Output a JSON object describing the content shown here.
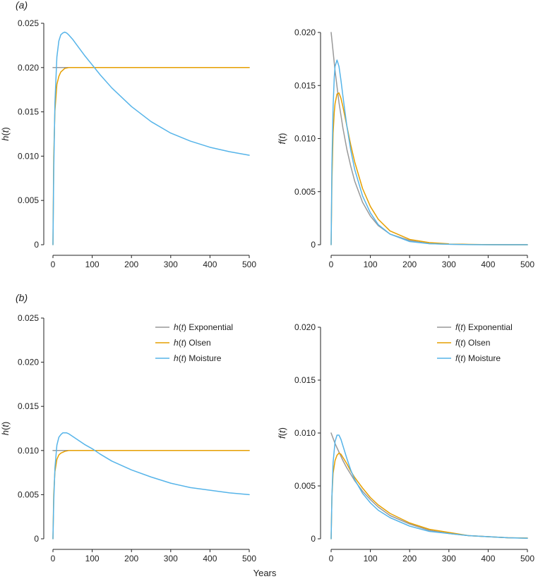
{
  "figure": {
    "xlabel": "Years",
    "panel_a_label": "(a)",
    "panel_b_label": "(b)"
  },
  "colors": {
    "Exponential": "#999999",
    "Olsen": "#E69F00",
    "Moisture": "#56B4E9"
  },
  "chart_data": [
    {
      "id": "a-h",
      "type": "line",
      "panel": "(a)",
      "xlabel": "",
      "ylabel": "h(t)",
      "xlim": [
        0,
        500
      ],
      "ylim": [
        0,
        0.025
      ],
      "xticks": [
        0,
        100,
        200,
        300,
        400,
        500
      ],
      "yticks": [
        0,
        0.005,
        0.01,
        0.015,
        0.02,
        0.025
      ],
      "ytick_labels": [
        "0",
        "0.005",
        "0.010",
        "0.015",
        "0.020",
        "0.025"
      ],
      "legend": false,
      "series": [
        {
          "key": "Exponential",
          "x": [
            0,
            500
          ],
          "y": [
            0.02,
            0.02
          ]
        },
        {
          "key": "Olsen",
          "x": [
            0,
            2,
            5,
            10,
            15,
            20,
            30,
            40,
            50,
            60,
            80,
            100,
            500
          ],
          "y": [
            0,
            0.0099,
            0.0151,
            0.0181,
            0.019,
            0.0195,
            0.0199,
            0.02,
            0.02,
            0.02,
            0.02,
            0.02,
            0.02
          ]
        },
        {
          "key": "Moisture",
          "x": [
            0,
            2,
            5,
            10,
            15,
            20,
            25,
            30,
            35,
            40,
            50,
            60,
            80,
            100,
            120,
            150,
            200,
            250,
            300,
            350,
            400,
            450,
            500
          ],
          "y": [
            0,
            0.0083,
            0.016,
            0.0212,
            0.023,
            0.0237,
            0.0239,
            0.024,
            0.0239,
            0.0237,
            0.0232,
            0.0226,
            0.0214,
            0.0203,
            0.0192,
            0.0177,
            0.0156,
            0.0139,
            0.0126,
            0.0117,
            0.011,
            0.0105,
            0.0101
          ]
        }
      ]
    },
    {
      "id": "a-f",
      "type": "line",
      "panel": "(a)",
      "xlabel": "",
      "ylabel": "f(t)",
      "xlim": [
        0,
        500
      ],
      "ylim": [
        0,
        0.02
      ],
      "xticks": [
        0,
        100,
        200,
        300,
        400,
        500
      ],
      "yticks": [
        0,
        0.005,
        0.01,
        0.015,
        0.02
      ],
      "ytick_labels": [
        "0",
        "0.005",
        "0.010",
        "0.015",
        "0.020"
      ],
      "legend": false,
      "series": [
        {
          "key": "Exponential",
          "x": [
            0,
            10,
            20,
            30,
            40,
            50,
            60,
            80,
            100,
            120,
            150,
            200,
            250,
            300,
            350,
            400,
            450,
            500
          ],
          "y": [
            0.02,
            0.0164,
            0.0134,
            0.011,
            0.009,
            0.0074,
            0.006,
            0.004,
            0.0027,
            0.0018,
            0.001,
            0.0004,
            0.0001,
            5e-05,
            2e-05,
            1e-05,
            0.0,
            0.0
          ]
        },
        {
          "key": "Olsen",
          "x": [
            0,
            2,
            5,
            8,
            10,
            15,
            20,
            25,
            30,
            40,
            50,
            60,
            80,
            100,
            120,
            150,
            200,
            250,
            300,
            350,
            400,
            450,
            500
          ],
          "y": [
            0,
            0.006,
            0.0105,
            0.0125,
            0.0133,
            0.0142,
            0.0143,
            0.0138,
            0.013,
            0.0112,
            0.0094,
            0.0078,
            0.0053,
            0.0036,
            0.0024,
            0.0013,
            0.0005,
            0.0002,
            8e-05,
            3e-05,
            1e-05,
            0.0,
            0.0
          ]
        },
        {
          "key": "Moisture",
          "x": [
            0,
            2,
            5,
            8,
            10,
            15,
            20,
            25,
            30,
            40,
            50,
            60,
            80,
            100,
            120,
            150,
            200,
            250,
            300,
            350,
            400,
            450,
            500
          ],
          "y": [
            0,
            0.0075,
            0.013,
            0.0158,
            0.0168,
            0.0174,
            0.0168,
            0.0155,
            0.014,
            0.0112,
            0.0089,
            0.0071,
            0.0046,
            0.003,
            0.0019,
            0.001,
            0.0003,
            0.0001,
            4e-05,
            1e-05,
            0.0,
            0.0,
            0.0
          ]
        }
      ]
    },
    {
      "id": "b-h",
      "type": "line",
      "panel": "(b)",
      "xlabel": "",
      "ylabel": "h(t)",
      "xlim": [
        0,
        500
      ],
      "ylim": [
        0,
        0.025
      ],
      "xticks": [
        0,
        100,
        200,
        300,
        400,
        500
      ],
      "yticks": [
        0,
        0.005,
        0.01,
        0.015,
        0.02,
        0.025
      ],
      "ytick_labels": [
        "0",
        "0.005",
        "0.010",
        "0.015",
        "0.020",
        "0.025"
      ],
      "legend": true,
      "legend_position": "top-right",
      "legend_entries": [
        {
          "key": "Exponential",
          "italic": "h(t)",
          "text": "Exponential"
        },
        {
          "key": "Olsen",
          "italic": "h(t)",
          "text": "Olsen"
        },
        {
          "key": "Moisture",
          "italic": "h(t)",
          "text": "Moisture"
        }
      ],
      "series": [
        {
          "key": "Exponential",
          "x": [
            0,
            500
          ],
          "y": [
            0.01,
            0.01
          ]
        },
        {
          "key": "Olsen",
          "x": [
            0,
            2,
            5,
            10,
            15,
            20,
            30,
            40,
            50,
            60,
            80,
            100,
            500
          ],
          "y": [
            0,
            0.005,
            0.0076,
            0.009,
            0.0095,
            0.0097,
            0.0099,
            0.01,
            0.01,
            0.01,
            0.01,
            0.01,
            0.01
          ]
        },
        {
          "key": "Moisture",
          "x": [
            0,
            2,
            5,
            10,
            15,
            20,
            25,
            30,
            35,
            40,
            50,
            60,
            80,
            100,
            120,
            150,
            200,
            250,
            300,
            350,
            400,
            450,
            500
          ],
          "y": [
            0,
            0.0042,
            0.008,
            0.0106,
            0.0115,
            0.0118,
            0.012,
            0.012,
            0.012,
            0.0119,
            0.0116,
            0.0113,
            0.0107,
            0.0102,
            0.0096,
            0.0088,
            0.0078,
            0.007,
            0.0063,
            0.0058,
            0.0055,
            0.0052,
            0.005
          ]
        }
      ]
    },
    {
      "id": "b-f",
      "type": "line",
      "panel": "(b)",
      "xlabel": "",
      "ylabel": "f(t)",
      "xlim": [
        0,
        500
      ],
      "ylim": [
        0,
        0.02
      ],
      "xticks": [
        0,
        100,
        200,
        300,
        400,
        500
      ],
      "yticks": [
        0,
        0.005,
        0.01,
        0.015,
        0.02
      ],
      "ytick_labels": [
        "0",
        "0.005",
        "0.010",
        "0.015",
        "0.020"
      ],
      "legend": true,
      "legend_position": "top-right",
      "legend_entries": [
        {
          "key": "Exponential",
          "italic": "f(t)",
          "text": "Exponential"
        },
        {
          "key": "Olsen",
          "italic": "f(t)",
          "text": "Olsen"
        },
        {
          "key": "Moisture",
          "italic": "f(t)",
          "text": "Moisture"
        }
      ],
      "series": [
        {
          "key": "Exponential",
          "x": [
            0,
            10,
            20,
            30,
            40,
            50,
            60,
            80,
            100,
            120,
            150,
            200,
            250,
            300,
            350,
            400,
            450,
            500
          ],
          "y": [
            0.01,
            0.009,
            0.0082,
            0.0074,
            0.0067,
            0.0061,
            0.0055,
            0.0045,
            0.0037,
            0.003,
            0.0022,
            0.0014,
            0.0008,
            0.0005,
            0.0003,
            0.0002,
            0.0001,
            7e-05
          ]
        },
        {
          "key": "Olsen",
          "x": [
            0,
            2,
            5,
            10,
            15,
            20,
            25,
            30,
            40,
            50,
            60,
            80,
            100,
            120,
            150,
            200,
            250,
            300,
            350,
            400,
            450,
            500
          ],
          "y": [
            0,
            0.004,
            0.0062,
            0.0074,
            0.0079,
            0.0081,
            0.008,
            0.0077,
            0.0071,
            0.0064,
            0.0058,
            0.0048,
            0.0039,
            0.0032,
            0.0024,
            0.0015,
            0.0009,
            0.0006,
            0.0003,
            0.0002,
            0.0001,
            7e-05
          ]
        },
        {
          "key": "Moisture",
          "x": [
            0,
            2,
            5,
            10,
            15,
            20,
            25,
            30,
            40,
            50,
            60,
            80,
            100,
            120,
            150,
            200,
            250,
            300,
            350,
            400,
            450,
            500
          ],
          "y": [
            0,
            0.004,
            0.0072,
            0.0092,
            0.0098,
            0.0098,
            0.0094,
            0.0088,
            0.0076,
            0.0065,
            0.0056,
            0.0043,
            0.0034,
            0.0027,
            0.002,
            0.0012,
            0.0007,
            0.0005,
            0.0003,
            0.0002,
            0.0001,
            5e-05
          ]
        }
      ]
    }
  ]
}
